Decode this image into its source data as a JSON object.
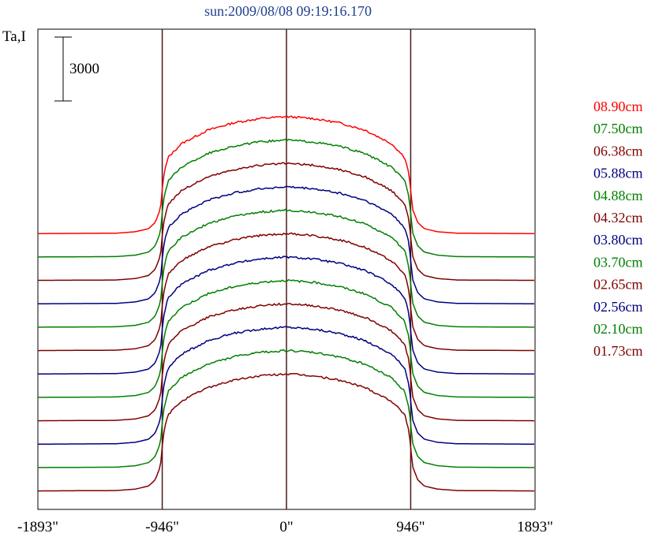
{
  "chart_data": {
    "type": "line",
    "title": "sun:2009/08/08 09:19:16.170",
    "ylabel": "Ta,I",
    "xlabel": "",
    "scale_bar_label": "3000",
    "x_ticks": [
      {
        "value": -1893,
        "label": "-1893\""
      },
      {
        "value": -946,
        "label": "-946\""
      },
      {
        "value": 0,
        "label": "0\""
      },
      {
        "value": 946,
        "label": "946\""
      },
      {
        "value": 1893,
        "label": "1893\""
      }
    ],
    "xlim": [
      -1893,
      1893
    ],
    "ylim": [
      -1500,
      37500
    ],
    "vertical_lines": [
      -946,
      0,
      946
    ],
    "grid": false,
    "legend_position": "right",
    "series_note_units": "Ta,I offset-stacked profiles; each series shifted by 1900 units",
    "series": [
      {
        "name": "08.90cm",
        "color": "#ff0000",
        "offset": 20900
      },
      {
        "name": "07.50cm",
        "color": "#008000",
        "offset": 19000
      },
      {
        "name": "06.38cm",
        "color": "#800000",
        "offset": 17100
      },
      {
        "name": "05.88cm",
        "color": "#000080",
        "offset": 15200
      },
      {
        "name": "04.88cm",
        "color": "#008000",
        "offset": 13300
      },
      {
        "name": "04.32cm",
        "color": "#800000",
        "offset": 11400
      },
      {
        "name": "03.80cm",
        "color": "#000080",
        "offset": 9500
      },
      {
        "name": "03.70cm",
        "color": "#008000",
        "offset": 7600
      },
      {
        "name": "02.65cm",
        "color": "#800000",
        "offset": 5700
      },
      {
        "name": "02.56cm",
        "color": "#000080",
        "offset": 3800
      },
      {
        "name": "02.10cm",
        "color": "#008000",
        "offset": 1900
      },
      {
        "name": "01.73cm",
        "color": "#800000",
        "offset": 0
      }
    ],
    "profile_shape": {
      "x": [
        -1893,
        -1300,
        -1150,
        -1050,
        -1000,
        -960,
        -946,
        -930,
        -900,
        -800,
        -600,
        -400,
        -200,
        0,
        200,
        400,
        600,
        800,
        900,
        930,
        946,
        960,
        1000,
        1050,
        1150,
        1300,
        1893
      ],
      "values": [
        0,
        30,
        150,
        400,
        900,
        2000,
        3600,
        5000,
        6200,
        7300,
        8400,
        9000,
        9350,
        9500,
        9350,
        9000,
        8400,
        7300,
        6200,
        5000,
        3600,
        2000,
        900,
        400,
        150,
        30,
        0
      ]
    }
  }
}
